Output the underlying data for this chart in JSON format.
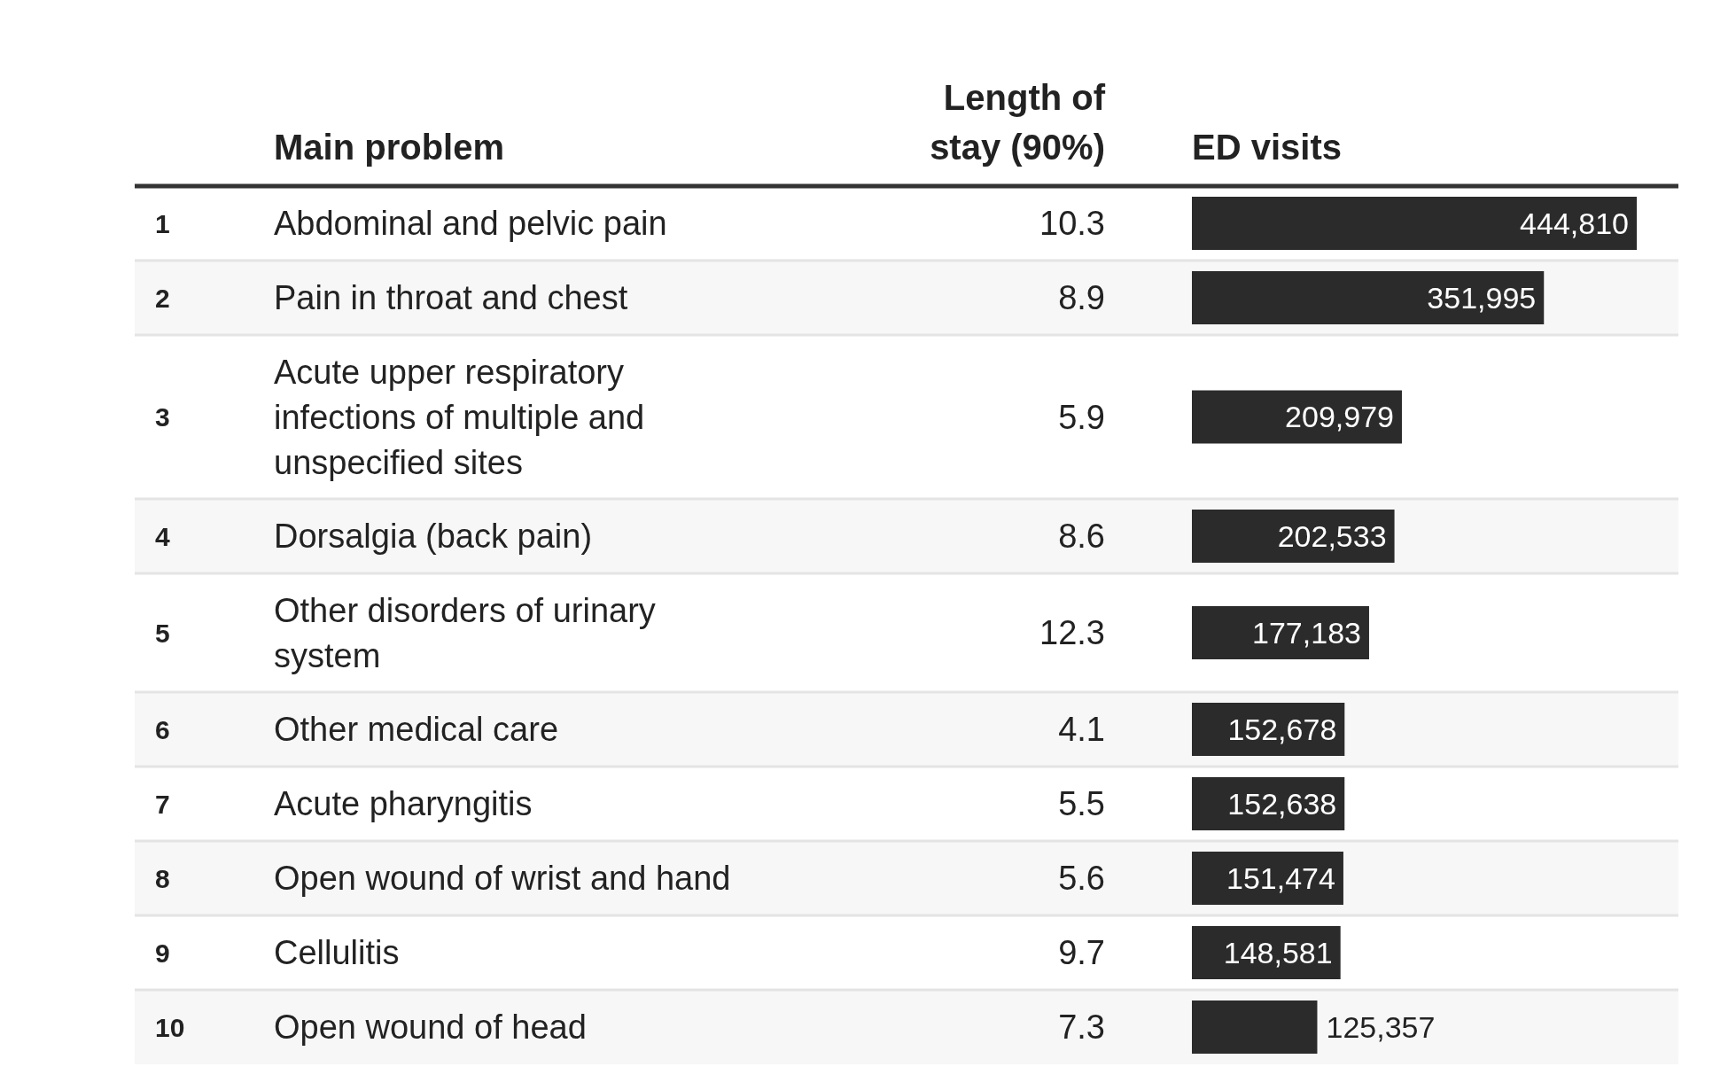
{
  "chart_data": [
    {
      "type": "bar",
      "orientation": "horizontal",
      "ylabel": "Main problem",
      "categories": [
        "Abdominal and pelvic pain",
        "Pain in throat and chest",
        "Acute upper respiratory infections of multiple and unspecified sites",
        "Dorsalgia (back pain)",
        "Other disorders of urinary system",
        "Other medical care",
        "Acute pharyngitis",
        "Open wound of wrist and hand",
        "Cellulitis",
        "Open wound of head"
      ],
      "series": [
        {
          "name": "ED visits",
          "color": "#2b2b2b",
          "values": [
            444810,
            351995,
            209979,
            202533,
            177183,
            152678,
            152638,
            151474,
            148581,
            125357
          ],
          "value_labels": [
            "444,810",
            "351,995",
            "209,979",
            "202,533",
            "177,183",
            "152,678",
            "152,638",
            "151,474",
            "148,581",
            "125,357"
          ]
        }
      ],
      "bands": [
        {
          "axis": "y",
          "from": "Pain in throat and chest",
          "to": "Pain in throat and chest",
          "color": "#f7f7f7"
        },
        {
          "axis": "y",
          "from": "Dorsalgia (back pain)",
          "to": "Dorsalgia (back pain)",
          "color": "#f7f7f7"
        },
        {
          "axis": "y",
          "from": "Other medical care",
          "to": "Other medical care",
          "color": "#f7f7f7"
        },
        {
          "axis": "y",
          "from": "Open wound of wrist and hand",
          "to": "Open wound of wrist and hand",
          "color": "#f7f7f7"
        },
        {
          "axis": "y",
          "from": "Open wound of head",
          "to": "Open wound of head",
          "color": "#f7f7f7"
        }
      ],
      "annotations": [
        "1",
        "2",
        "3",
        "4",
        "5",
        "6",
        "7",
        "8",
        "9",
        "10"
      ]
    },
    {
      "type": "other",
      "title": "Length of stay (90%)",
      "annotations": [
        "10.3",
        "8.9",
        "5.9",
        "8.6",
        "12.3",
        "4.1",
        "5.5",
        "5.6",
        "9.7",
        "7.3"
      ]
    }
  ]
}
